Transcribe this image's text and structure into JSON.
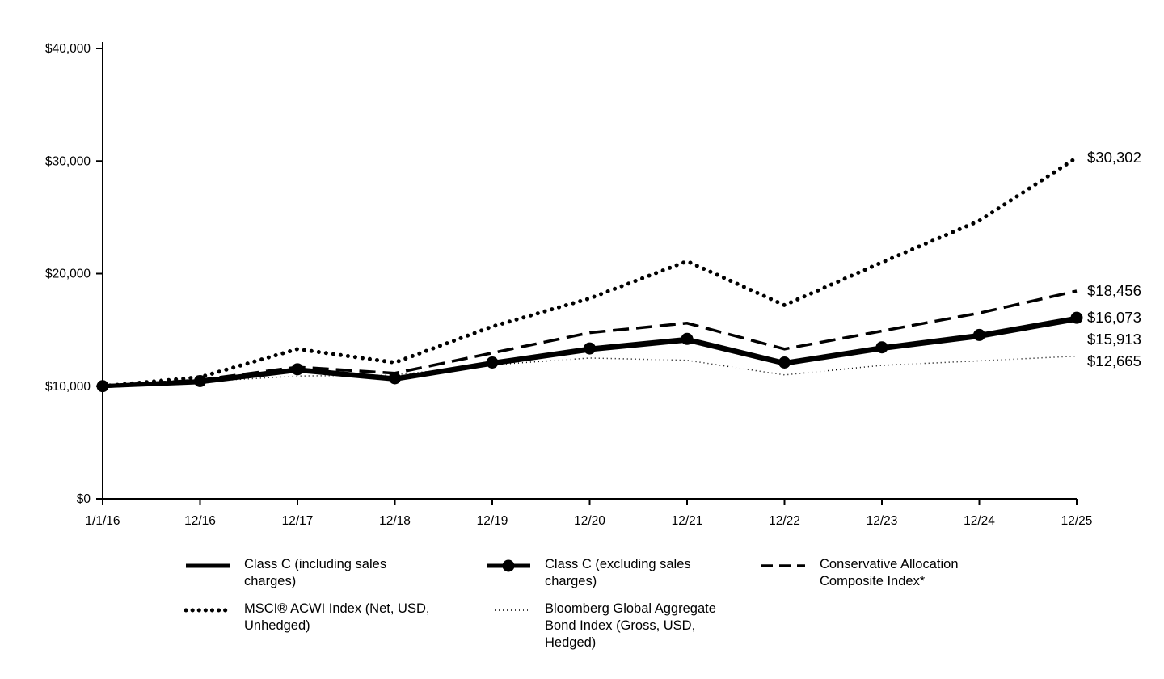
{
  "chart_data": {
    "type": "line",
    "title": "",
    "xlabel": "",
    "ylabel": "",
    "x": [
      "1/1/16",
      "12/16",
      "12/17",
      "12/18",
      "12/19",
      "12/20",
      "12/21",
      "12/22",
      "12/23",
      "12/24",
      "12/25"
    ],
    "ylim": [
      0,
      40000
    ],
    "y_ticks": [
      {
        "value": 0,
        "label": "$0"
      },
      {
        "value": 10000,
        "label": "$10,000"
      },
      {
        "value": 20000,
        "label": "$20,000"
      },
      {
        "value": 30000,
        "label": "$30,000"
      },
      {
        "value": 40000,
        "label": "$40,000"
      }
    ],
    "grid": false,
    "legend_position": "bottom",
    "series": [
      {
        "name": "Class C (including sales charges)",
        "style": "solid-thick",
        "end_label": "$15,913",
        "values": [
          10000,
          10350,
          11390,
          10590,
          11980,
          13210,
          14060,
          11980,
          13310,
          14400,
          15913
        ]
      },
      {
        "name": "Class C (excluding sales charges)",
        "style": "solid-marker",
        "end_label": "$16,073",
        "values": [
          10000,
          10450,
          11500,
          10700,
          12100,
          13350,
          14200,
          12100,
          13450,
          14550,
          16073
        ]
      },
      {
        "name": "Conservative Allocation Composite Index*",
        "style": "dashed",
        "end_label": "$18,456",
        "values": [
          10000,
          10550,
          11700,
          11150,
          12950,
          14750,
          15600,
          13300,
          14900,
          16500,
          18456
        ]
      },
      {
        "name": "MSCI® ACWI Index (Net, USD, Unhedged)",
        "style": "dotted-thick",
        "end_label": "$30,302",
        "values": [
          10000,
          10800,
          13300,
          12100,
          15300,
          17800,
          21100,
          17200,
          21000,
          24700,
          30302
        ]
      },
      {
        "name": "Bloomberg Global Aggregate Bond Index (Gross, USD, Hedged)",
        "style": "dotted-thin",
        "end_label": "$12,665",
        "values": [
          10000,
          10400,
          10900,
          11000,
          11900,
          12500,
          12300,
          11000,
          11850,
          12250,
          12665
        ]
      }
    ],
    "legend_rows": [
      [
        0,
        1,
        2
      ],
      [
        3,
        4
      ]
    ],
    "colors": {
      "line": "#000000",
      "text": "#000000",
      "background": "#ffffff"
    }
  }
}
